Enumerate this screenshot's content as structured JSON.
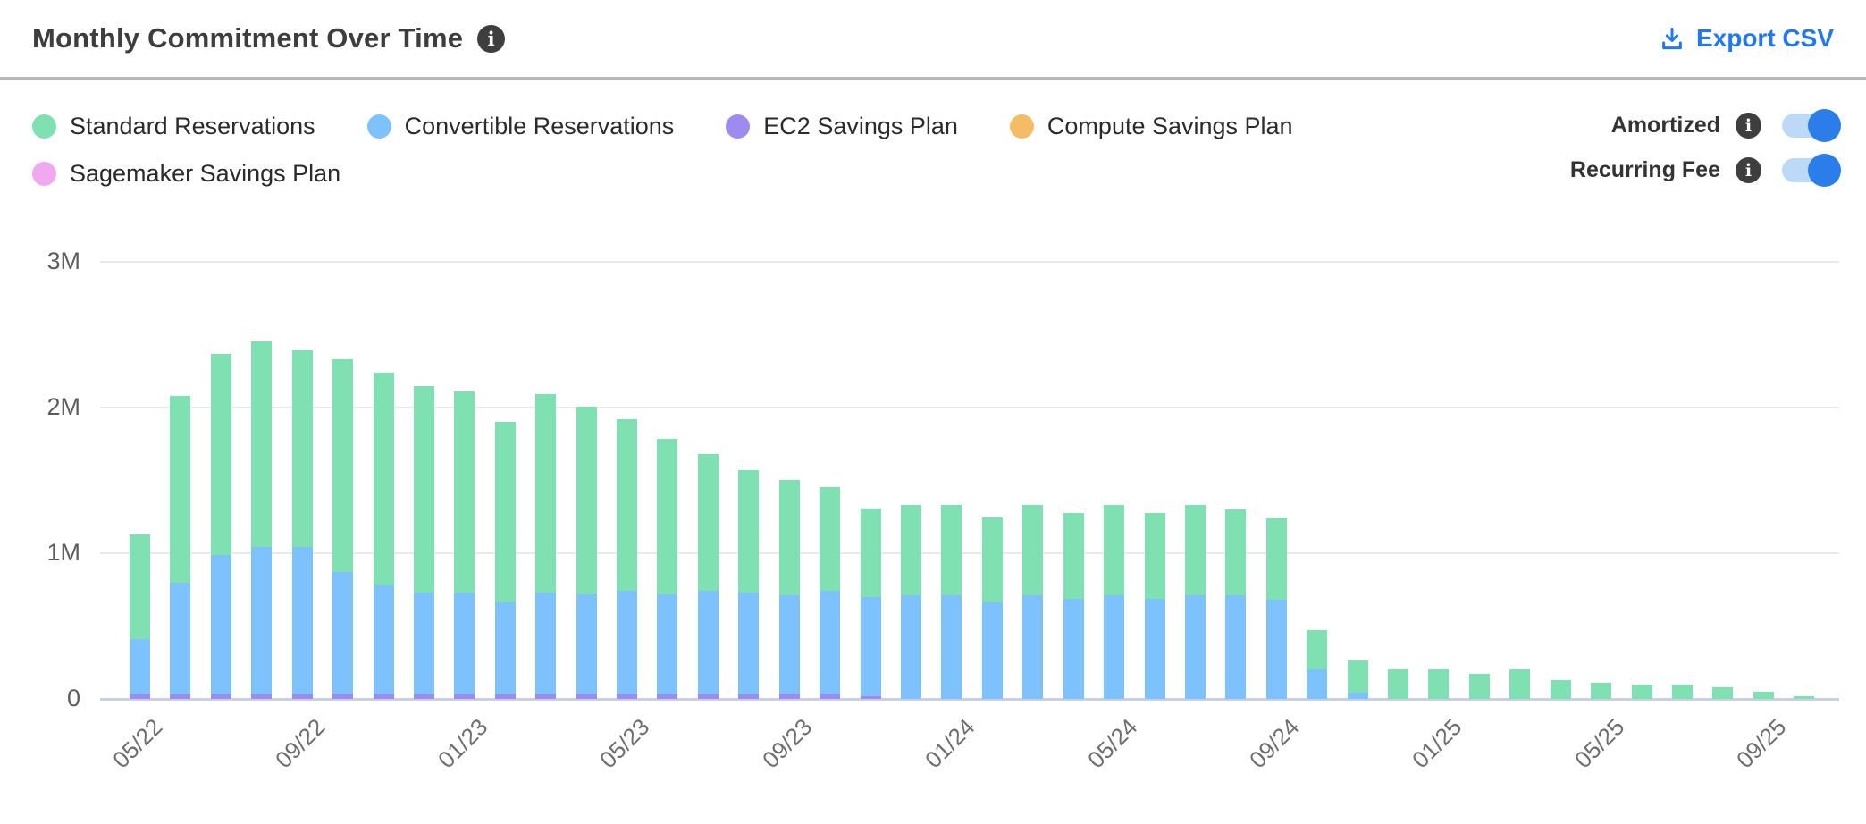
{
  "header": {
    "title": "Monthly Commitment Over Time",
    "title_info_icon": "info-icon",
    "export_label": "Export CSV"
  },
  "legend": {
    "items": [
      {
        "label": "Standard Reservations",
        "color": "#7fe0b2"
      },
      {
        "label": "Convertible Reservations",
        "color": "#7dc1fd"
      },
      {
        "label": "EC2 Savings Plan",
        "color": "#9f8bef"
      },
      {
        "label": "Compute Savings Plan",
        "color": "#f5bc66"
      },
      {
        "label": "Sagemaker Savings Plan",
        "color": "#f0a9ee"
      }
    ]
  },
  "toggles": [
    {
      "label": "Amortized",
      "state": "on"
    },
    {
      "label": "Recurring Fee",
      "state": "on"
    }
  ],
  "colors": {
    "accent_blue": "#2277f2",
    "toggle_track": "#bcd9f8",
    "toggle_knob": "#2b7de9",
    "gridline": "#eaeaea",
    "axis_baseline": "#c9d0e6"
  },
  "chart_data": {
    "type": "bar",
    "stacked": true,
    "unit": "M (millions)",
    "title": "Monthly Commitment Over Time",
    "xlabel": "",
    "ylabel": "",
    "ylim": [
      0,
      3
    ],
    "y_ticks": [
      {
        "value": 0,
        "label": "0"
      },
      {
        "value": 1,
        "label": "1M"
      },
      {
        "value": 2,
        "label": "2M"
      },
      {
        "value": 3,
        "label": "3M"
      }
    ],
    "x_tick_every": 4,
    "x": [
      "05/22",
      "06/22",
      "07/22",
      "08/22",
      "09/22",
      "10/22",
      "11/22",
      "12/22",
      "01/23",
      "02/23",
      "03/23",
      "04/23",
      "05/23",
      "06/23",
      "07/23",
      "08/23",
      "09/23",
      "10/23",
      "11/23",
      "12/23",
      "01/24",
      "02/24",
      "03/24",
      "04/24",
      "05/24",
      "06/24",
      "07/24",
      "08/24",
      "09/24",
      "10/24",
      "11/24",
      "12/24",
      "01/25",
      "02/25",
      "03/25",
      "04/25",
      "05/25",
      "06/25",
      "07/25",
      "08/25",
      "09/25",
      "10/25"
    ],
    "stack_order_bottom_up": [
      "EC2 Savings Plan",
      "Sagemaker Savings Plan",
      "Compute Savings Plan",
      "Convertible Reservations",
      "Standard Reservations"
    ],
    "series": [
      {
        "name": "Standard Reservations",
        "color": "#7fe0b2",
        "values": [
          0.72,
          1.28,
          1.38,
          1.41,
          1.35,
          1.46,
          1.46,
          1.42,
          1.38,
          1.24,
          1.36,
          1.29,
          1.18,
          1.07,
          0.94,
          0.84,
          0.79,
          0.71,
          0.61,
          0.62,
          0.62,
          0.58,
          0.62,
          0.59,
          0.62,
          0.59,
          0.62,
          0.59,
          0.56,
          0.27,
          0.22,
          0.2,
          0.2,
          0.17,
          0.2,
          0.13,
          0.11,
          0.1,
          0.1,
          0.08,
          0.05,
          0.02
        ]
      },
      {
        "name": "Convertible Reservations",
        "color": "#7dc1fd",
        "values": [
          0.38,
          0.77,
          0.96,
          1.01,
          1.01,
          0.84,
          0.75,
          0.7,
          0.7,
          0.63,
          0.7,
          0.69,
          0.71,
          0.69,
          0.71,
          0.7,
          0.68,
          0.71,
          0.68,
          0.71,
          0.71,
          0.66,
          0.71,
          0.69,
          0.71,
          0.69,
          0.71,
          0.71,
          0.68,
          0.2,
          0.04,
          0,
          0,
          0,
          0,
          0,
          0,
          0,
          0,
          0,
          0,
          0
        ]
      },
      {
        "name": "EC2 Savings Plan",
        "color": "#9f8bef",
        "values": [
          0.03,
          0.03,
          0.03,
          0.03,
          0.03,
          0.03,
          0.03,
          0.03,
          0.03,
          0.03,
          0.03,
          0.03,
          0.03,
          0.03,
          0.03,
          0.03,
          0.03,
          0.03,
          0.02,
          0,
          0,
          0,
          0,
          0,
          0,
          0,
          0,
          0,
          0,
          0,
          0,
          0,
          0,
          0,
          0,
          0,
          0,
          0,
          0,
          0,
          0,
          0
        ]
      },
      {
        "name": "Compute Savings Plan",
        "color": "#f5bc66",
        "values": [
          0,
          0,
          0,
          0,
          0,
          0,
          0,
          0,
          0,
          0,
          0,
          0,
          0,
          0,
          0,
          0,
          0,
          0,
          0,
          0,
          0,
          0,
          0,
          0,
          0,
          0,
          0,
          0,
          0,
          0,
          0,
          0,
          0,
          0,
          0,
          0,
          0,
          0,
          0,
          0,
          0,
          0
        ]
      },
      {
        "name": "Sagemaker Savings Plan",
        "color": "#f0a9ee",
        "values": [
          0,
          0,
          0,
          0,
          0,
          0,
          0,
          0,
          0,
          0,
          0,
          0,
          0,
          0,
          0,
          0,
          0,
          0,
          0,
          0,
          0,
          0,
          0,
          0,
          0,
          0,
          0,
          0,
          0,
          0,
          0,
          0,
          0,
          0,
          0,
          0,
          0,
          0,
          0,
          0,
          0,
          0
        ]
      }
    ]
  }
}
